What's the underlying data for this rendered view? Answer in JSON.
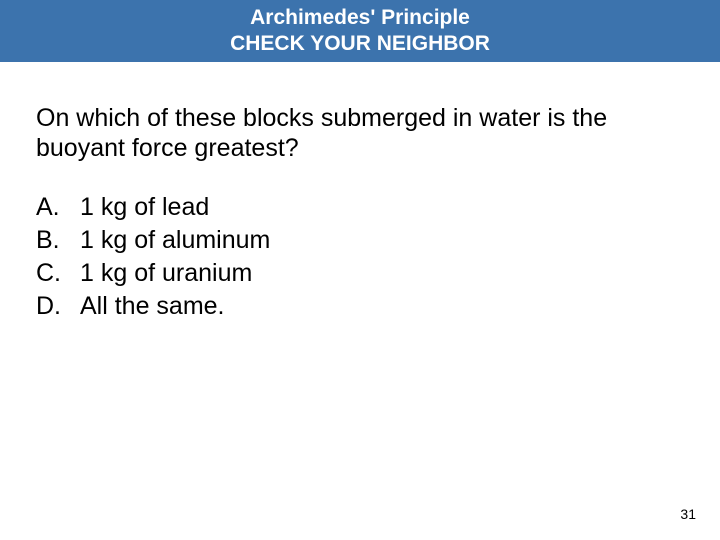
{
  "slide": {
    "header": {
      "title": "Archimedes' Principle",
      "subtitle": "CHECK YOUR NEIGHBOR",
      "background_color": "#3c73ad",
      "text_color": "#ffffff",
      "title_fontsize": 21,
      "font_weight": "bold"
    },
    "question": {
      "text": "On which of these blocks submerged in water is the buoyant force greatest?",
      "fontsize": 25,
      "color": "#000000"
    },
    "options": [
      {
        "letter": "A.",
        "text": "1 kg of lead"
      },
      {
        "letter": "B.",
        "text": "1 kg of aluminum"
      },
      {
        "letter": "C.",
        "text": "1 kg of uranium"
      },
      {
        "letter": "D.",
        "text": "All the same."
      }
    ],
    "option_fontsize": 25,
    "page_number": "31",
    "page_number_fontsize": 14,
    "background_color": "#ffffff"
  }
}
